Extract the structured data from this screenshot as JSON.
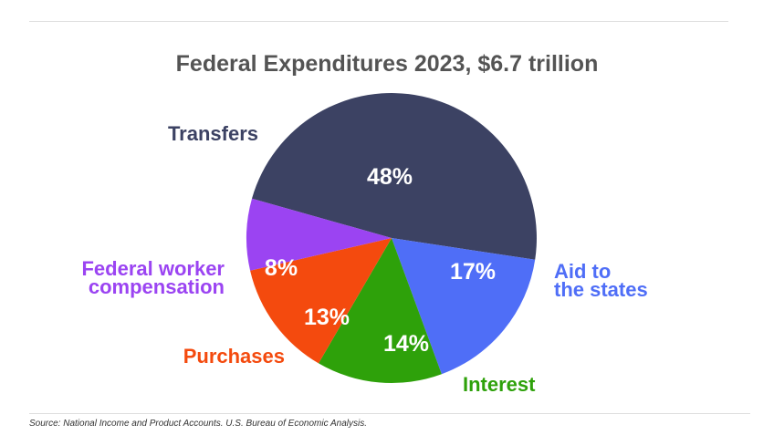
{
  "chart_data": {
    "type": "pie",
    "title": "Federal Expenditures 2023, $6.7 trillion",
    "slices": [
      {
        "label": [
          "Transfers"
        ],
        "value": 48,
        "value_label": "48%",
        "color": "#3c4263"
      },
      {
        "label": [
          "Aid to",
          "the states"
        ],
        "value": 17,
        "value_label": "17%",
        "color": "#4f6ef7"
      },
      {
        "label": [
          "Interest"
        ],
        "value": 14,
        "value_label": "14%",
        "color": "#2ea10a"
      },
      {
        "label": [
          "Purchases"
        ],
        "value": 13,
        "value_label": "13%",
        "color": "#f44a0e"
      },
      {
        "label": [
          "Federal worker",
          "compensation"
        ],
        "value": 8,
        "value_label": "8%",
        "color": "#9b44f2"
      }
    ],
    "source": "Source: National Income and Product Accounts. U.S. Bureau of Economic Analysis."
  }
}
